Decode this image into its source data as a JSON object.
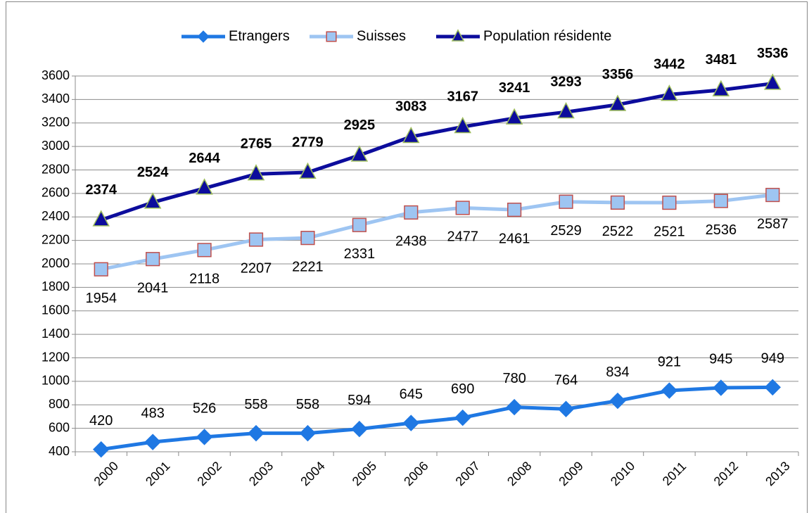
{
  "chart_data": {
    "type": "line",
    "categories": [
      "2000",
      "2001",
      "2002",
      "2003",
      "2004",
      "2005",
      "2006",
      "2007",
      "2008",
      "2009",
      "2010",
      "2011",
      "2012",
      "2013"
    ],
    "series": [
      {
        "name": "Etrangers",
        "color": "#1f78e3",
        "marker": "diamond",
        "values": [
          420,
          483,
          526,
          558,
          558,
          594,
          645,
          690,
          780,
          764,
          834,
          921,
          945,
          949
        ]
      },
      {
        "name": "Suisses",
        "color": "#9ec5f2",
        "marker": "square",
        "values": [
          1954,
          2041,
          2118,
          2207,
          2221,
          2331,
          2438,
          2477,
          2461,
          2529,
          2522,
          2521,
          2536,
          2587
        ]
      },
      {
        "name": "Population résidente",
        "color": "#0c0c9c",
        "marker": "triangle",
        "values": [
          2374,
          2524,
          2644,
          2765,
          2779,
          2925,
          3083,
          3167,
          3241,
          3293,
          3356,
          3442,
          3481,
          3536
        ]
      }
    ],
    "ylim": [
      400,
      3600
    ],
    "yticks": [
      400,
      600,
      800,
      1000,
      1200,
      1400,
      1600,
      1800,
      2000,
      2200,
      2400,
      2600,
      2800,
      3000,
      3200,
      3400,
      3600
    ],
    "grid": true,
    "legend": "top"
  }
}
